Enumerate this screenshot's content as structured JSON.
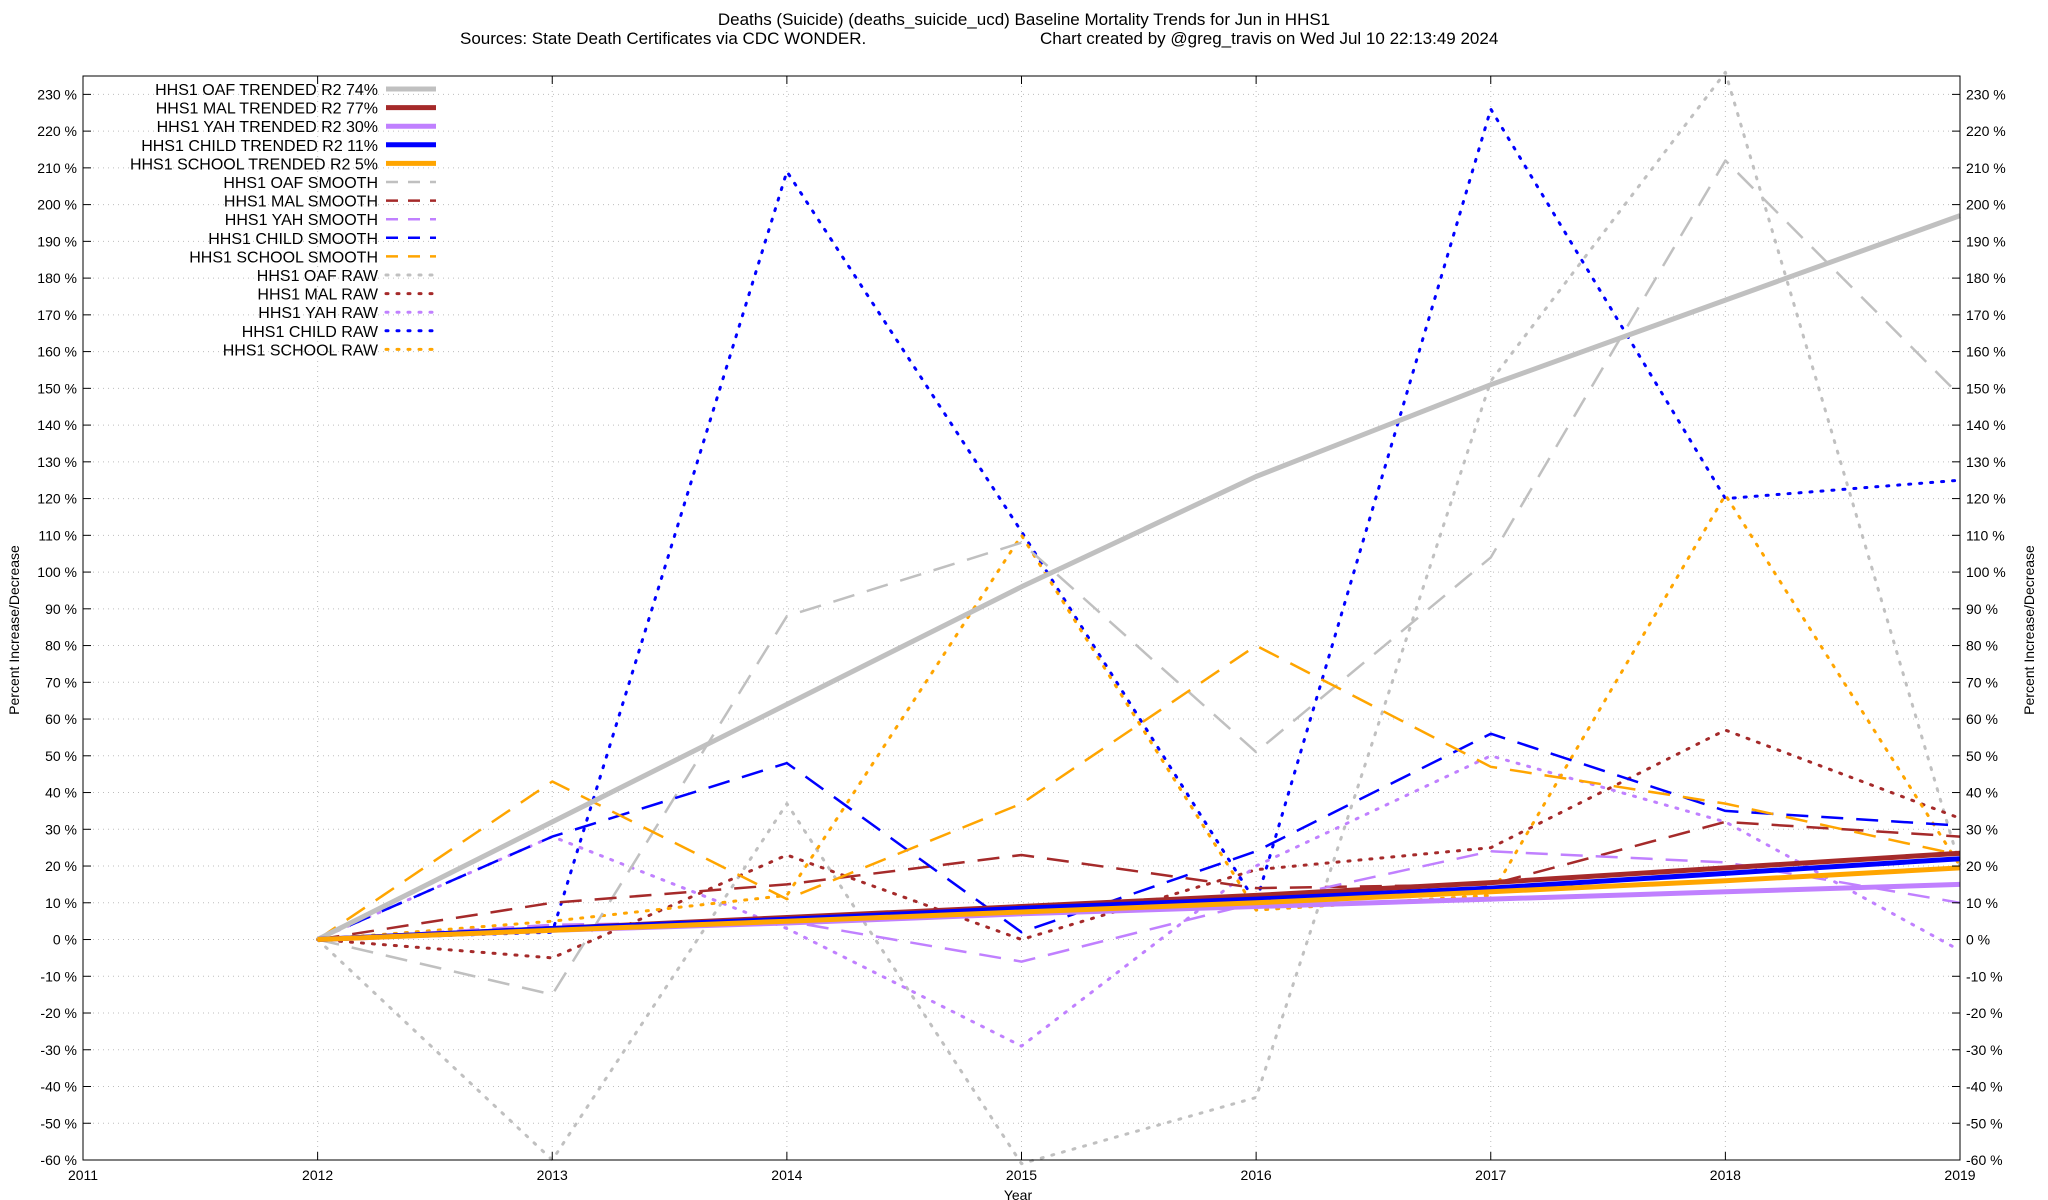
{
  "chart_data": {
    "type": "line",
    "title": "Deaths (Suicide) (deaths_suicide_ucd)  Baseline Mortality Trends for Jun in HHS1",
    "subtitle_left": "Sources: State Death Certificates via CDC WONDER.",
    "subtitle_right": "Chart created by @greg_travis on Wed Jul 10 22:13:49 2024",
    "xlabel": "Year",
    "ylabel": "Percent Increase/Decrease",
    "xlim": [
      2011,
      2019
    ],
    "ylim": [
      -60,
      235
    ],
    "x_ticks": [
      2011,
      2012,
      2013,
      2014,
      2015,
      2016,
      2017,
      2018,
      2019
    ],
    "x_tick_labels": [
      "2011",
      "2012",
      "2013",
      "2014",
      "2015",
      "2016",
      "2017",
      "2018",
      "2019"
    ],
    "y_ticks": [
      -60,
      -50,
      -40,
      -30,
      -20,
      -10,
      0,
      10,
      20,
      30,
      40,
      50,
      60,
      70,
      80,
      90,
      100,
      110,
      120,
      130,
      140,
      150,
      160,
      170,
      180,
      190,
      200,
      210,
      220,
      230
    ],
    "y_tick_labels": [
      "-60 %",
      "-50 %",
      "-40 %",
      "-30 %",
      "-20 %",
      "-10 %",
      "0 %",
      "10 %",
      "20 %",
      "30 %",
      "40 %",
      "50 %",
      "60 %",
      "70 %",
      "80 %",
      "90 %",
      "100 %",
      "110 %",
      "120 %",
      "130 %",
      "140 %",
      "150 %",
      "160 %",
      "170 %",
      "180 %",
      "190 %",
      "200 %",
      "210 %",
      "220 %",
      "230 %"
    ],
    "grid": true,
    "legend_position": "top-left",
    "x": [
      2012,
      2013,
      2014,
      2015,
      2016,
      2017,
      2018,
      2019
    ],
    "series": [
      {
        "name": "HHS1 OAF TRENDED R2",
        "r2": "74%",
        "style": "trend",
        "color": "#c0c0c0",
        "values": [
          0,
          32,
          64,
          96,
          126,
          151,
          174,
          197
        ]
      },
      {
        "name": "HHS1 MAL TRENDED R2",
        "r2": "77%",
        "style": "trend",
        "color": "#a52a2a",
        "values": [
          0,
          3,
          6,
          9,
          12,
          15.5,
          19.5,
          23.5
        ]
      },
      {
        "name": "HHS1 YAH TRENDED R2",
        "r2": "30%",
        "style": "trend",
        "color": "#c080ff",
        "values": [
          0,
          2.5,
          4.5,
          7,
          9,
          11,
          13,
          15
        ]
      },
      {
        "name": "HHS1 CHILD TRENDED R2",
        "r2": "11%",
        "style": "trend",
        "color": "#0000ff",
        "values": [
          0,
          3,
          5.5,
          8.5,
          11,
          14,
          18,
          22
        ]
      },
      {
        "name": "HHS1 SCHOOL TRENDED R2",
        "r2": "5%",
        "style": "trend",
        "color": "#ffa500",
        "values": [
          0,
          2.5,
          5,
          7.5,
          10,
          13,
          16,
          19.5
        ]
      },
      {
        "name": "HHS1 OAF SMOOTH",
        "style": "smooth",
        "color": "#c0c0c0",
        "values": [
          0,
          -15,
          88,
          108,
          51,
          104,
          212,
          148
        ]
      },
      {
        "name": "HHS1 MAL SMOOTH",
        "style": "smooth",
        "color": "#a52a2a",
        "values": [
          0,
          10,
          15,
          23,
          14,
          15,
          32,
          28
        ]
      },
      {
        "name": "HHS1 YAH SMOOTH",
        "style": "smooth",
        "color": "#c080ff",
        "values": [
          0,
          4,
          5,
          -6,
          10,
          24,
          21,
          10
        ]
      },
      {
        "name": "HHS1 CHILD SMOOTH",
        "style": "smooth",
        "color": "#0000ff",
        "values": [
          0,
          28,
          48,
          2,
          24,
          56,
          35,
          31
        ]
      },
      {
        "name": "HHS1 SCHOOL SMOOTH",
        "style": "smooth",
        "color": "#ffa500",
        "values": [
          0,
          43,
          11,
          37,
          80,
          47,
          37,
          23
        ]
      },
      {
        "name": "HHS1 OAF RAW",
        "style": "raw",
        "color": "#c0c0c0",
        "values": [
          0,
          -60,
          37,
          -61,
          -43,
          152,
          236,
          20
        ]
      },
      {
        "name": "HHS1 MAL RAW",
        "style": "raw",
        "color": "#a52a2a",
        "values": [
          0,
          -5,
          23,
          0,
          19,
          25,
          57,
          33
        ]
      },
      {
        "name": "HHS1 YAH RAW",
        "style": "raw",
        "color": "#c080ff",
        "values": [
          0,
          28,
          3,
          -29,
          20,
          50,
          32,
          -3
        ]
      },
      {
        "name": "HHS1 CHILD RAW",
        "style": "raw",
        "color": "#0000ff",
        "values": [
          0,
          2,
          209,
          111,
          10,
          226,
          120,
          125
        ]
      },
      {
        "name": "HHS1 SCHOOL RAW",
        "style": "raw",
        "color": "#ffa500",
        "values": [
          0,
          5,
          12,
          110,
          8,
          12,
          121,
          20
        ]
      }
    ]
  }
}
